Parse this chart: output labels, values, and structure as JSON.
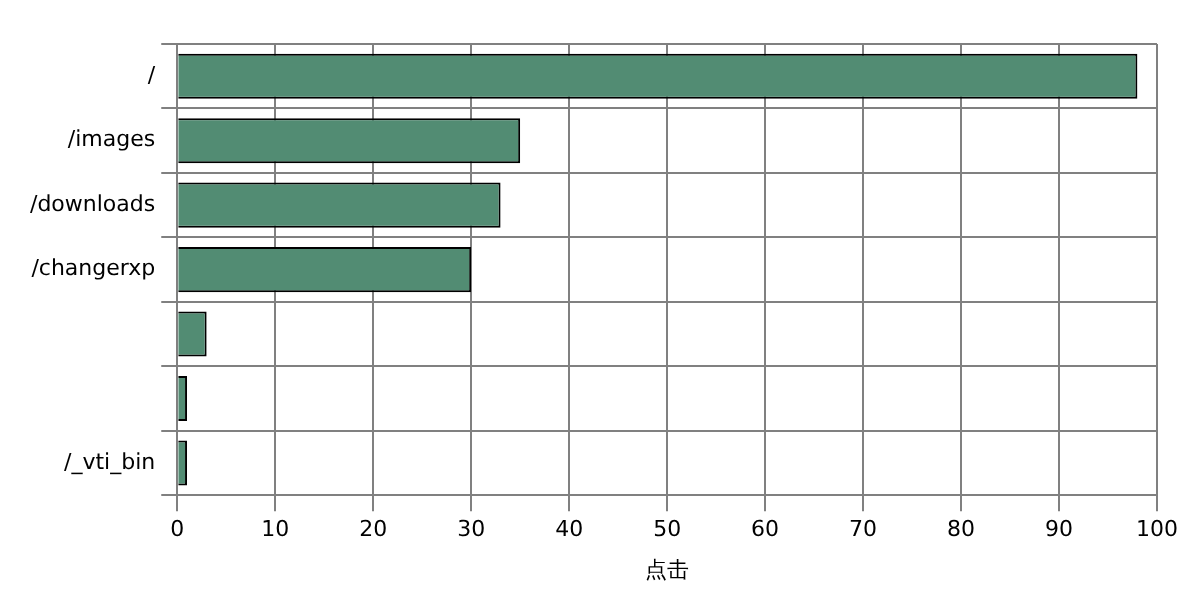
{
  "chart_data": {
    "type": "bar",
    "orientation": "horizontal",
    "xlabel": "点击",
    "categories": [
      "/",
      "/images",
      "/downloads",
      "/changerxp",
      null,
      null,
      "/_vti_bin"
    ],
    "values": [
      98,
      35,
      33,
      30,
      3,
      1,
      1
    ],
    "color": "#528c73",
    "xlim": [
      0,
      100
    ],
    "xticks": [
      0,
      10,
      20,
      30,
      40,
      50,
      60,
      70,
      80,
      90,
      100
    ],
    "grid": true,
    "legend": false
  }
}
